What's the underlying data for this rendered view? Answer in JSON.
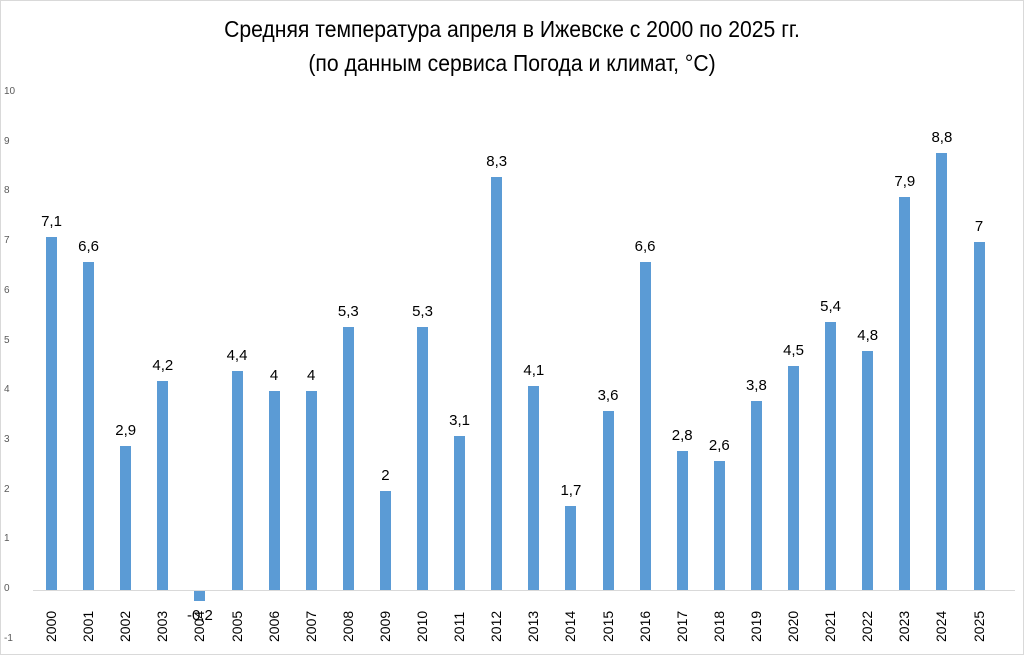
{
  "chart_data": {
    "type": "bar",
    "title": "Средняя температура апреля в Ижевске с 2000 по 2025 гг.",
    "subtitle": "(по данным сервиса Погода и климат, °C)",
    "xlabel": "",
    "ylabel": "",
    "ylim": [
      -1,
      10
    ],
    "yticks": [
      "10",
      "9",
      "8",
      "7",
      "6",
      "5",
      "4",
      "3",
      "2",
      "1",
      "0",
      "-1"
    ],
    "grid": false,
    "legend": null,
    "bar_color": "#5b9bd5",
    "categories": [
      "2000",
      "2001",
      "2002",
      "2003",
      "2004",
      "2005",
      "2006",
      "2007",
      "2008",
      "2009",
      "2010",
      "2011",
      "2012",
      "2013",
      "2014",
      "2015",
      "2016",
      "2017",
      "2018",
      "2019",
      "2020",
      "2021",
      "2022",
      "2023",
      "2024",
      "2025"
    ],
    "values": [
      7.1,
      6.6,
      2.9,
      4.2,
      -0.2,
      4.4,
      4,
      4,
      5.3,
      2,
      5.3,
      3.1,
      8.3,
      4.1,
      1.7,
      3.6,
      6.6,
      2.8,
      2.6,
      3.8,
      4.5,
      5.4,
      4.8,
      7.9,
      8.8,
      7
    ],
    "data_labels": [
      "7,1",
      "6,6",
      "2,9",
      "4,2",
      "-0,2",
      "4,4",
      "4",
      "4",
      "5,3",
      "2",
      "5,3",
      "3,1",
      "8,3",
      "4,1",
      "1,7",
      "3,6",
      "6,6",
      "2,8",
      "2,6",
      "3,8",
      "4,5",
      "5,4",
      "4,8",
      "7,9",
      "8,8",
      "7"
    ]
  }
}
